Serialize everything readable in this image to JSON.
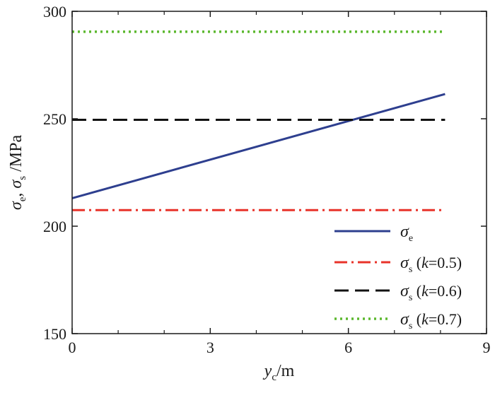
{
  "chart_data": {
    "type": "line",
    "xlim": [
      0,
      9
    ],
    "ylim": [
      150,
      300
    ],
    "x_ticks": [
      0,
      3,
      6,
      9
    ],
    "x_tick_labels": [
      "0",
      "3",
      "6",
      "9"
    ],
    "x_minor_ticks": [
      1,
      2,
      4,
      5,
      7,
      8
    ],
    "y_ticks": [
      150,
      200,
      250,
      300
    ],
    "y_tick_labels": [
      "150",
      "200",
      "250",
      "300"
    ],
    "xlabel": {
      "var": "y",
      "sub": "c",
      "unit": "/m"
    },
    "ylabel": {
      "var1": "σ",
      "sub1": "e",
      "sep": ", ",
      "var2": "σ",
      "sub2": "s",
      "unit": " /MPa"
    },
    "grid": false,
    "legend_position": "bottom-right",
    "series": [
      {
        "legend": {
          "sym": "σ",
          "sub": "e",
          "text_pre": "",
          "k": "",
          "text_post": ""
        },
        "x": [
          0,
          8.1
        ],
        "y": [
          213,
          261.5
        ],
        "color": "#2e3f8f",
        "style": "solid"
      },
      {
        "legend": {
          "sym": "σ",
          "sub": "s",
          "text_pre": " (",
          "k": "k",
          "text_post": "=0.5)"
        },
        "x": [
          0,
          8.1
        ],
        "y": [
          207.5,
          207.5
        ],
        "color": "#e8332a",
        "style": "dashdot"
      },
      {
        "legend": {
          "sym": "σ",
          "sub": "s",
          "text_pre": " (",
          "k": "k",
          "text_post": "=0.6)"
        },
        "x": [
          0,
          8.1
        ],
        "y": [
          249.5,
          249.5
        ],
        "color": "#111111",
        "style": "dashed"
      },
      {
        "legend": {
          "sym": "σ",
          "sub": "s",
          "text_pre": " (",
          "k": "k",
          "text_post": "=0.7)"
        },
        "x": [
          0,
          8.1
        ],
        "y": [
          290.5,
          290.5
        ],
        "color": "#5cb82e",
        "style": "dotted"
      }
    ]
  }
}
